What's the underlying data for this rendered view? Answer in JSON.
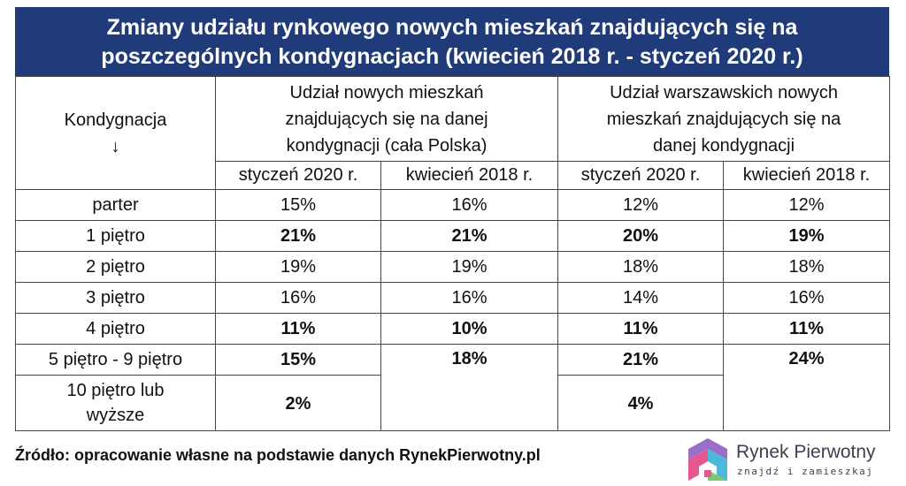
{
  "title": {
    "line1": "Zmiany udziału rynkowego nowych mieszkań znajdujących się na",
    "line2": "poszczególnych kondygnacjach (kwiecień 2018 r. - styczeń 2020 r.)"
  },
  "table": {
    "col_floor_header": "Kondygnacja",
    "col_floor_arrow": "↓",
    "group_polska": [
      "Udział nowych mieszkań",
      "znajdujących się na danej",
      "kondygnacji (cała Polska)"
    ],
    "group_warszawa": [
      "Udział warszawskich nowych",
      "mieszkań znajdujących się na",
      "danej kondygnacji"
    ],
    "sub_headers": [
      "styczeń 2020 r.",
      "kwiecień 2018 r.",
      "styczeń 2020 r.",
      "kwiecień 2018 r."
    ],
    "rows": [
      {
        "floor": "parter",
        "values": [
          "15%",
          "16%",
          "12%",
          "12%"
        ],
        "bold": [
          false,
          false,
          false,
          false
        ]
      },
      {
        "floor": "1 piętro",
        "values": [
          "21%",
          "21%",
          "20%",
          "19%"
        ],
        "bold": [
          true,
          true,
          true,
          true
        ]
      },
      {
        "floor": "2 piętro",
        "values": [
          "19%",
          "19%",
          "18%",
          "18%"
        ],
        "bold": [
          false,
          false,
          false,
          false
        ]
      },
      {
        "floor": "3 piętro",
        "values": [
          "16%",
          "16%",
          "14%",
          "16%"
        ],
        "bold": [
          false,
          false,
          false,
          false
        ]
      },
      {
        "floor": "4 piętro",
        "values": [
          "11%",
          "10%",
          "11%",
          "11%"
        ],
        "bold": [
          true,
          true,
          true,
          true
        ]
      },
      {
        "floor": "5 piętro - 9 piętro",
        "values": [
          "15%",
          "18%",
          "21%",
          "24%"
        ],
        "bold": [
          true,
          true,
          true,
          true
        ]
      }
    ],
    "last_row": {
      "floor_line1": "10 piętro lub",
      "floor_line2": "wyższe",
      "polska_2020": "2%",
      "warszawa_2020": "4%"
    }
  },
  "source": "Źródło: opracowanie własne na podstawie danych RynekPierwotny.pl",
  "logo": {
    "name": "Rynek Pierwotny",
    "tagline": "znajdź i zamieszkaj",
    "colors": [
      "#9b6fc8",
      "#e8568f",
      "#4db8d8",
      "#7bc96f"
    ]
  },
  "colors": {
    "title_bg": "#1f3b7a",
    "title_text": "#ffffff",
    "border": "#444444"
  }
}
